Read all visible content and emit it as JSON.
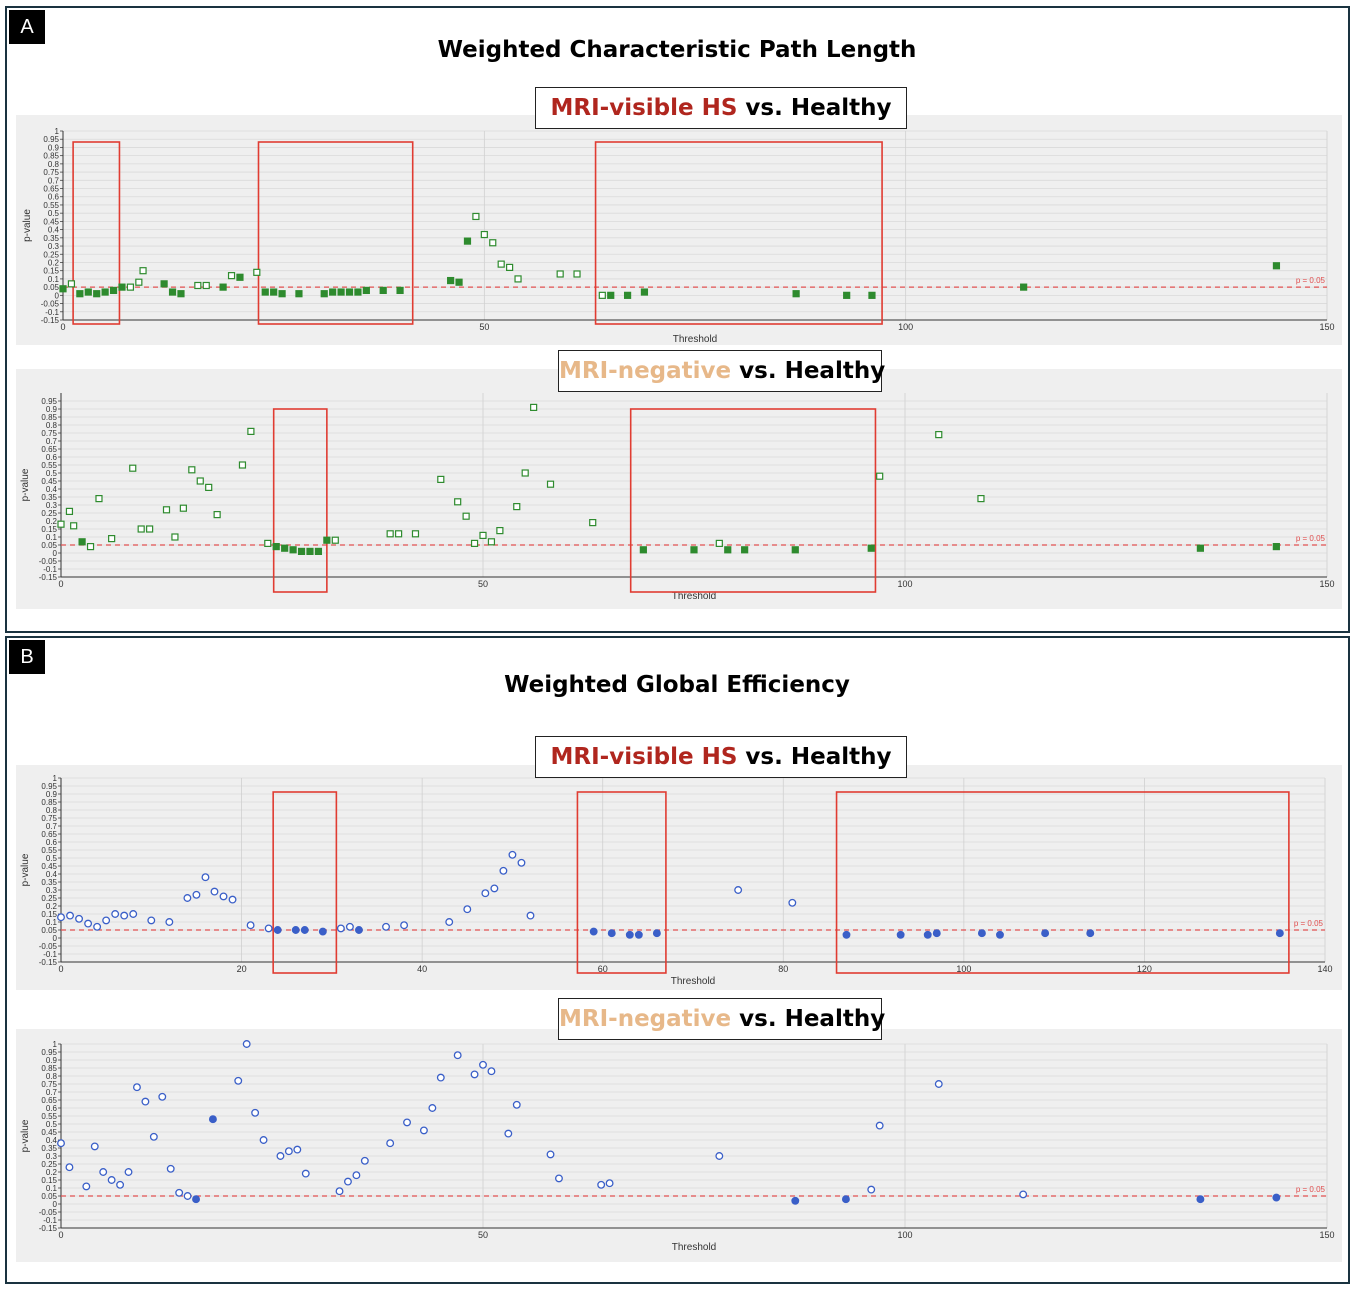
{
  "panels": [
    {
      "letter": "A",
      "title": "Weighted Characteristic Path Length"
    },
    {
      "letter": "B",
      "title": "Weighted Global Efficiency"
    }
  ],
  "comparisons": [
    {
      "group": "MRI-visible HS",
      "group_color": "#b0261e",
      "suffix": " vs. Healthy"
    },
    {
      "group": "MRI-negative",
      "group_color": "#e7b889",
      "suffix": " vs. Healthy"
    },
    {
      "group": "MRI-visible HS",
      "group_color": "#b0261e",
      "suffix": " vs. Healthy"
    },
    {
      "group": "MRI-negative",
      "group_color": "#e7b889",
      "suffix": " vs. Healthy"
    }
  ],
  "colors": {
    "path_length_marker": "#2e8b2e",
    "efficiency_marker": "#3a5fc8",
    "threshold_line": "#e05050",
    "highlight_box": "#e03c32"
  },
  "chart_data": [
    {
      "type": "scatter",
      "panel": "A",
      "xlabel": "Threshold",
      "ylabel": "p-value",
      "xlim": [
        0,
        150
      ],
      "ylim": [
        -0.15,
        1
      ],
      "xticks": [
        0,
        50,
        100,
        150
      ],
      "yticks": [
        "1",
        "0.95",
        "0.9",
        "0.85",
        "0.8",
        "0.75",
        "0.7",
        "0.65",
        "0.6",
        "0.55",
        "0.5",
        "0.45",
        "0.4",
        "0.35",
        "0.3",
        "0.25",
        "0.2",
        "0.15",
        "0.1",
        "0.05",
        "0",
        "-0.05",
        "-0.1",
        "-0.15"
      ],
      "reference_line": {
        "y": 0.05,
        "label": "p = 0.05"
      },
      "marker": "square",
      "highlight_x_ranges": [
        [
          1.2,
          6.7
        ],
        [
          23.2,
          41.5
        ],
        [
          63.2,
          97.2
        ]
      ],
      "points": [
        [
          0,
          0.04
        ],
        [
          1,
          0.07
        ],
        [
          2,
          0.01
        ],
        [
          3,
          0.02
        ],
        [
          4,
          0.01
        ],
        [
          5,
          0.02
        ],
        [
          6,
          0.03
        ],
        [
          7,
          0.05
        ],
        [
          8,
          0.05
        ],
        [
          9,
          0.08
        ],
        [
          9.5,
          0.15
        ],
        [
          12,
          0.07
        ],
        [
          13,
          0.02
        ],
        [
          14,
          0.01
        ],
        [
          16,
          0.06
        ],
        [
          17,
          0.06
        ],
        [
          19,
          0.05
        ],
        [
          20,
          0.12
        ],
        [
          21,
          0.11
        ],
        [
          23,
          0.14
        ],
        [
          24,
          0.02
        ],
        [
          25,
          0.02
        ],
        [
          26,
          0.01
        ],
        [
          28,
          0.01
        ],
        [
          31,
          0.01
        ],
        [
          32,
          0.02
        ],
        [
          33,
          0.02
        ],
        [
          34,
          0.02
        ],
        [
          35,
          0.02
        ],
        [
          36,
          0.03
        ],
        [
          38,
          0.03
        ],
        [
          40,
          0.03
        ],
        [
          46,
          0.09
        ],
        [
          47,
          0.08
        ],
        [
          48,
          0.33
        ],
        [
          49,
          0.48
        ],
        [
          50,
          0.37
        ],
        [
          51,
          0.32
        ],
        [
          52,
          0.19
        ],
        [
          53,
          0.17
        ],
        [
          54,
          0.1
        ],
        [
          59,
          0.13
        ],
        [
          61,
          0.13
        ],
        [
          64,
          0.0
        ],
        [
          65,
          0.0
        ],
        [
          67,
          0.0
        ],
        [
          69,
          0.02
        ],
        [
          87,
          0.01
        ],
        [
          93,
          0.0
        ],
        [
          96,
          0.0
        ],
        [
          114,
          0.05
        ],
        [
          144,
          0.18
        ]
      ],
      "filled": [
        0,
        2,
        3,
        4,
        5,
        6,
        7,
        11,
        12,
        13,
        16,
        18,
        20,
        21,
        22,
        23,
        24,
        25,
        26,
        27,
        28,
        29,
        30,
        31,
        32,
        33,
        34,
        44,
        45,
        46,
        47,
        48,
        49,
        50,
        51
      ]
    },
    {
      "type": "scatter",
      "panel": "A",
      "xlabel": "Threshold",
      "ylabel": "p-value",
      "xlim": [
        0,
        150
      ],
      "ylim": [
        -0.15,
        1
      ],
      "xticks": [
        0,
        50,
        100,
        150
      ],
      "yticks": [
        "0.95",
        "0.9",
        "0.85",
        "0.8",
        "0.75",
        "0.7",
        "0.65",
        "0.6",
        "0.55",
        "0.5",
        "0.45",
        "0.4",
        "0.35",
        "0.3",
        "0.25",
        "0.2",
        "0.15",
        "0.1",
        "0.05",
        "0",
        "-0.05",
        "-0.1",
        "-0.15"
      ],
      "reference_line": {
        "y": 0.05,
        "label": "p = 0.05"
      },
      "marker": "square",
      "highlight_x_ranges": [
        [
          25.2,
          31.5
        ],
        [
          67.5,
          96.5
        ]
      ],
      "points": [
        [
          0,
          0.18
        ],
        [
          1,
          0.26
        ],
        [
          1.5,
          0.17
        ],
        [
          2.5,
          0.07
        ],
        [
          3.5,
          0.04
        ],
        [
          4.5,
          0.34
        ],
        [
          6,
          0.09
        ],
        [
          8.5,
          0.53
        ],
        [
          9.5,
          0.15
        ],
        [
          10.5,
          0.15
        ],
        [
          12.5,
          0.27
        ],
        [
          13.5,
          0.1
        ],
        [
          14.5,
          0.28
        ],
        [
          15.5,
          0.52
        ],
        [
          16.5,
          0.45
        ],
        [
          17.5,
          0.41
        ],
        [
          18.5,
          0.24
        ],
        [
          21.5,
          0.55
        ],
        [
          22.5,
          0.76
        ],
        [
          24.5,
          0.06
        ],
        [
          25.5,
          0.04
        ],
        [
          26.5,
          0.03
        ],
        [
          27.5,
          0.02
        ],
        [
          28.5,
          0.01
        ],
        [
          29.5,
          0.01
        ],
        [
          30.5,
          0.01
        ],
        [
          31.5,
          0.08
        ],
        [
          32.5,
          0.08
        ],
        [
          39,
          0.12
        ],
        [
          40,
          0.12
        ],
        [
          42,
          0.12
        ],
        [
          45,
          0.46
        ],
        [
          47,
          0.32
        ],
        [
          48,
          0.23
        ],
        [
          49,
          0.06
        ],
        [
          50,
          0.11
        ],
        [
          51,
          0.07
        ],
        [
          52,
          0.14
        ],
        [
          54,
          0.29
        ],
        [
          55,
          0.5
        ],
        [
          56,
          0.91
        ],
        [
          58,
          0.43
        ],
        [
          63,
          0.19
        ],
        [
          69,
          0.02
        ],
        [
          75,
          0.02
        ],
        [
          78,
          0.06
        ],
        [
          79,
          0.02
        ],
        [
          81,
          0.02
        ],
        [
          87,
          0.02
        ],
        [
          96,
          0.03
        ],
        [
          97,
          0.48
        ],
        [
          104,
          0.74
        ],
        [
          109,
          0.34
        ],
        [
          135,
          0.03
        ],
        [
          144,
          0.04
        ]
      ],
      "filled": [
        3,
        20,
        21,
        22,
        23,
        24,
        25,
        26,
        43,
        44,
        46,
        47,
        48,
        49,
        53,
        54
      ]
    },
    {
      "type": "scatter",
      "panel": "B",
      "xlabel": "Threshold",
      "ylabel": "p-value",
      "xlim": [
        0,
        140
      ],
      "ylim": [
        -0.15,
        1
      ],
      "xticks": [
        0,
        20,
        40,
        60,
        80,
        100,
        120,
        140
      ],
      "yticks": [
        "1",
        "0.95",
        "0.9",
        "0.85",
        "0.8",
        "0.75",
        "0.7",
        "0.65",
        "0.6",
        "0.55",
        "0.5",
        "0.45",
        "0.4",
        "0.35",
        "0.3",
        "0.25",
        "0.2",
        "0.15",
        "0.1",
        "0.05",
        "0",
        "-0.05",
        "-0.1",
        "-0.15"
      ],
      "reference_line": {
        "y": 0.05,
        "label": "p = 0.05"
      },
      "marker": "circle",
      "highlight_x_ranges": [
        [
          23.5,
          30.5
        ],
        [
          57.2,
          67.0
        ],
        [
          85.9,
          136.0
        ]
      ],
      "points": [
        [
          0,
          0.13
        ],
        [
          1,
          0.14
        ],
        [
          2,
          0.12
        ],
        [
          3,
          0.09
        ],
        [
          4,
          0.07
        ],
        [
          5,
          0.11
        ],
        [
          6,
          0.15
        ],
        [
          7,
          0.14
        ],
        [
          8,
          0.15
        ],
        [
          10,
          0.11
        ],
        [
          12,
          0.1
        ],
        [
          14,
          0.25
        ],
        [
          15,
          0.27
        ],
        [
          16,
          0.38
        ],
        [
          17,
          0.29
        ],
        [
          18,
          0.26
        ],
        [
          19,
          0.24
        ],
        [
          21,
          0.08
        ],
        [
          23,
          0.06
        ],
        [
          24,
          0.05
        ],
        [
          26,
          0.05
        ],
        [
          27,
          0.05
        ],
        [
          29,
          0.04
        ],
        [
          31,
          0.06
        ],
        [
          32,
          0.07
        ],
        [
          33,
          0.05
        ],
        [
          36,
          0.07
        ],
        [
          38,
          0.08
        ],
        [
          43,
          0.1
        ],
        [
          45,
          0.18
        ],
        [
          47,
          0.28
        ],
        [
          48,
          0.31
        ],
        [
          49,
          0.42
        ],
        [
          50,
          0.52
        ],
        [
          51,
          0.47
        ],
        [
          52,
          0.14
        ],
        [
          59,
          0.04
        ],
        [
          61,
          0.03
        ],
        [
          63,
          0.02
        ],
        [
          64,
          0.02
        ],
        [
          66,
          0.03
        ],
        [
          75,
          0.3
        ],
        [
          81,
          0.22
        ],
        [
          87,
          0.02
        ],
        [
          93,
          0.02
        ],
        [
          96,
          0.02
        ],
        [
          97,
          0.03
        ],
        [
          102,
          0.03
        ],
        [
          104,
          0.02
        ],
        [
          109,
          0.03
        ],
        [
          114,
          0.03
        ],
        [
          135,
          0.03
        ]
      ],
      "filled": [
        19,
        20,
        21,
        22,
        25,
        36,
        37,
        38,
        39,
        40,
        43,
        44,
        45,
        46,
        47,
        48,
        49,
        50,
        51
      ]
    },
    {
      "type": "scatter",
      "panel": "B",
      "xlabel": "Threshold",
      "ylabel": "p-value",
      "xlim": [
        0,
        150
      ],
      "ylim": [
        -0.15,
        1
      ],
      "xticks": [
        0,
        50,
        100,
        150
      ],
      "yticks": [
        "1",
        "0.95",
        "0.9",
        "0.85",
        "0.8",
        "0.75",
        "0.7",
        "0.65",
        "0.6",
        "0.55",
        "0.5",
        "0.45",
        "0.4",
        "0.35",
        "0.3",
        "0.25",
        "0.2",
        "0.15",
        "0.1",
        "0.05",
        "0",
        "-0.05",
        "-0.1",
        "-0.15"
      ],
      "reference_line": {
        "y": 0.05,
        "label": "p = 0.05"
      },
      "marker": "circle",
      "highlight_x_ranges": [],
      "points": [
        [
          0,
          0.38
        ],
        [
          1,
          0.23
        ],
        [
          3,
          0.11
        ],
        [
          4,
          0.36
        ],
        [
          5,
          0.2
        ],
        [
          6,
          0.15
        ],
        [
          7,
          0.12
        ],
        [
          8,
          0.2
        ],
        [
          9,
          0.73
        ],
        [
          10,
          0.64
        ],
        [
          11,
          0.42
        ],
        [
          12,
          0.67
        ],
        [
          13,
          0.22
        ],
        [
          14,
          0.07
        ],
        [
          15,
          0.05
        ],
        [
          16,
          0.03
        ],
        [
          18,
          0.53
        ],
        [
          21,
          0.77
        ],
        [
          22,
          1.0
        ],
        [
          23,
          0.57
        ],
        [
          24,
          0.4
        ],
        [
          26,
          0.3
        ],
        [
          27,
          0.33
        ],
        [
          28,
          0.34
        ],
        [
          29,
          0.19
        ],
        [
          33,
          0.08
        ],
        [
          34,
          0.14
        ],
        [
          35,
          0.18
        ],
        [
          36,
          0.27
        ],
        [
          39,
          0.38
        ],
        [
          41,
          0.51
        ],
        [
          43,
          0.46
        ],
        [
          44,
          0.6
        ],
        [
          45,
          0.79
        ],
        [
          47,
          0.93
        ],
        [
          49,
          0.81
        ],
        [
          50,
          0.87
        ],
        [
          51,
          0.83
        ],
        [
          53,
          0.44
        ],
        [
          54,
          0.62
        ],
        [
          58,
          0.31
        ],
        [
          59,
          0.16
        ],
        [
          64,
          0.12
        ],
        [
          65,
          0.13
        ],
        [
          78,
          0.3
        ],
        [
          87,
          0.02
        ],
        [
          93,
          0.03
        ],
        [
          96,
          0.09
        ],
        [
          97,
          0.49
        ],
        [
          104,
          0.75
        ],
        [
          114,
          0.06
        ],
        [
          135,
          0.03
        ],
        [
          144,
          0.04
        ]
      ],
      "filled": [
        15,
        16,
        45,
        46,
        51,
        52
      ]
    }
  ]
}
